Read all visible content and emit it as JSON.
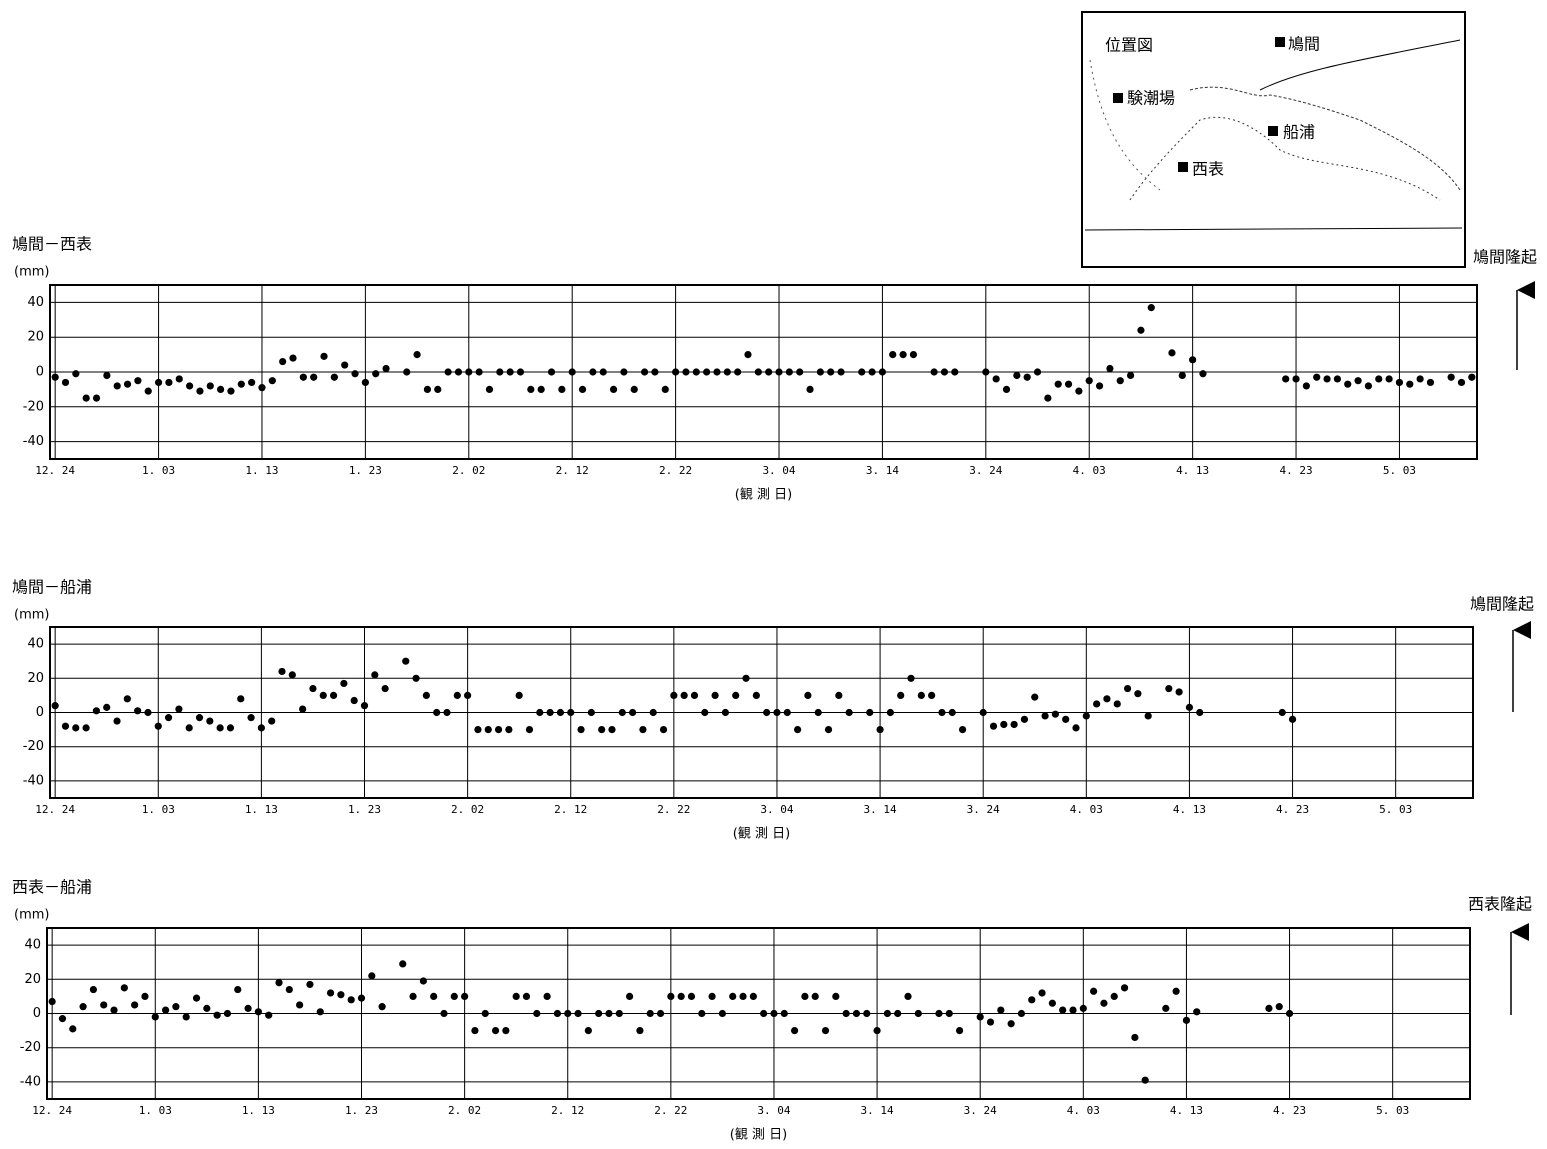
{
  "map": {
    "title": "位置図",
    "labels": [
      "鳩間",
      "験潮場",
      "船浦",
      "西表"
    ]
  },
  "chart_data": [
    {
      "type": "scatter",
      "title": "鳩間－西表",
      "y_label": "(mm)",
      "x_label": "(観 測 日)",
      "annotation": "鳩間隆起",
      "color": "#000000",
      "grid": true,
      "xlim": [
        -0.5,
        137.5
      ],
      "ylim": [
        -50,
        50
      ],
      "yticks": [
        -40,
        -20,
        0,
        20,
        40
      ],
      "xticks": [
        {
          "value": 0,
          "label": "12. 24"
        },
        {
          "value": 10,
          "label": "1. 03"
        },
        {
          "value": 20,
          "label": "1. 13"
        },
        {
          "value": 30,
          "label": "1. 23"
        },
        {
          "value": 40,
          "label": "2. 02"
        },
        {
          "value": 50,
          "label": "2. 12"
        },
        {
          "value": 60,
          "label": "2. 22"
        },
        {
          "value": 70,
          "label": "3. 04"
        },
        {
          "value": 80,
          "label": "3. 14"
        },
        {
          "value": 90,
          "label": "3. 24"
        },
        {
          "value": 100,
          "label": "4. 03"
        },
        {
          "value": 110,
          "label": "4. 13"
        },
        {
          "value": 120,
          "label": "4. 23"
        },
        {
          "value": 130,
          "label": "5. 03"
        }
      ],
      "x": [
        0,
        1,
        2,
        3,
        4,
        5,
        6,
        7,
        8,
        9,
        10,
        11,
        12,
        13,
        14,
        15,
        16,
        17,
        18,
        19,
        20,
        21,
        22,
        23,
        24,
        25,
        26,
        27,
        28,
        29,
        30,
        31,
        32,
        34,
        35,
        36,
        37,
        38,
        39,
        40,
        41,
        42,
        43,
        44,
        45,
        46,
        47,
        48,
        49,
        50,
        51,
        52,
        53,
        54,
        55,
        56,
        57,
        58,
        59,
        60,
        61,
        62,
        63,
        64,
        65,
        66,
        67,
        68,
        69,
        70,
        71,
        72,
        73,
        74,
        75,
        76,
        78,
        79,
        80,
        81,
        82,
        83,
        85,
        86,
        87,
        90,
        91,
        92,
        93,
        94,
        95,
        96,
        97,
        98,
        99,
        100,
        101,
        102,
        103,
        104,
        105,
        106,
        108,
        109,
        110,
        111,
        119,
        120,
        121,
        122,
        123,
        124,
        125,
        126,
        127,
        128,
        129,
        130,
        131,
        132,
        133,
        135,
        136,
        137
      ],
      "values": [
        -3,
        -6,
        -1,
        -15,
        -15,
        -2,
        -8,
        -7,
        -5,
        -11,
        -6,
        -6,
        -4,
        -8,
        -11,
        -8,
        -10,
        -11,
        -7,
        -6,
        -9,
        -5,
        6,
        8,
        -3,
        -3,
        9,
        -3,
        4,
        -1,
        -6,
        -1,
        2,
        0,
        10,
        -10,
        -10,
        0,
        0,
        0,
        0,
        -10,
        0,
        0,
        0,
        -10,
        -10,
        0,
        -10,
        0,
        -10,
        0,
        0,
        -10,
        0,
        -10,
        0,
        0,
        -10,
        0,
        0,
        0,
        0,
        0,
        0,
        0,
        10,
        0,
        0,
        0,
        0,
        0,
        -10,
        0,
        0,
        0,
        0,
        0,
        0,
        10,
        10,
        10,
        0,
        0,
        0,
        0,
        -4,
        -10,
        -2,
        -3,
        0,
        -15,
        -7,
        -7,
        -11,
        -5,
        -8,
        2,
        -5,
        -2,
        24,
        37,
        11,
        -2,
        7,
        -1,
        -4,
        -4,
        -8,
        -3,
        -4,
        -4,
        -7,
        -5,
        -8,
        -4,
        -4,
        -6,
        -7,
        -4,
        -6,
        -3,
        -6,
        -3
      ]
    },
    {
      "type": "scatter",
      "title": "鳩間－船浦",
      "y_label": "(mm)",
      "x_label": "(観 測 日)",
      "annotation": "鳩間隆起",
      "color": "#000000",
      "grid": true,
      "xlim": [
        -0.5,
        137.5
      ],
      "ylim": [
        -50,
        50
      ],
      "yticks": [
        -40,
        -20,
        0,
        20,
        40
      ],
      "xticks": [
        {
          "value": 0,
          "label": "12. 24"
        },
        {
          "value": 10,
          "label": "1. 03"
        },
        {
          "value": 20,
          "label": "1. 13"
        },
        {
          "value": 30,
          "label": "1. 23"
        },
        {
          "value": 40,
          "label": "2. 02"
        },
        {
          "value": 50,
          "label": "2. 12"
        },
        {
          "value": 60,
          "label": "2. 22"
        },
        {
          "value": 70,
          "label": "3. 04"
        },
        {
          "value": 80,
          "label": "3. 14"
        },
        {
          "value": 90,
          "label": "3. 24"
        },
        {
          "value": 100,
          "label": "4. 03"
        },
        {
          "value": 110,
          "label": "4. 13"
        },
        {
          "value": 120,
          "label": "4. 23"
        },
        {
          "value": 130,
          "label": "5. 03"
        }
      ],
      "x": [
        0,
        1,
        2,
        3,
        4,
        5,
        6,
        7,
        8,
        9,
        10,
        11,
        12,
        13,
        14,
        15,
        16,
        17,
        18,
        19,
        20,
        21,
        22,
        23,
        24,
        25,
        26,
        27,
        28,
        29,
        30,
        31,
        32,
        34,
        35,
        36,
        37,
        38,
        39,
        40,
        41,
        42,
        43,
        44,
        45,
        46,
        47,
        48,
        49,
        50,
        51,
        52,
        53,
        54,
        55,
        56,
        57,
        58,
        59,
        60,
        61,
        62,
        63,
        64,
        65,
        66,
        67,
        68,
        69,
        70,
        71,
        72,
        73,
        74,
        75,
        76,
        77,
        79,
        80,
        81,
        82,
        83,
        84,
        85,
        86,
        87,
        88,
        90,
        91,
        92,
        93,
        94,
        95,
        96,
        97,
        98,
        99,
        100,
        101,
        102,
        103,
        104,
        105,
        106,
        108,
        109,
        110,
        111,
        119,
        120
      ],
      "values": [
        4,
        -8,
        -9,
        -9,
        1,
        3,
        -5,
        8,
        1,
        0,
        -8,
        -3,
        2,
        -9,
        -3,
        -5,
        -9,
        -9,
        8,
        -3,
        -9,
        -5,
        24,
        22,
        2,
        14,
        10,
        10,
        17,
        7,
        4,
        22,
        14,
        30,
        20,
        10,
        0,
        0,
        10,
        10,
        -10,
        -10,
        -10,
        -10,
        10,
        -10,
        0,
        0,
        0,
        0,
        -10,
        0,
        -10,
        -10,
        0,
        0,
        -10,
        0,
        -10,
        10,
        10,
        10,
        0,
        10,
        0,
        10,
        20,
        10,
        0,
        0,
        0,
        -10,
        10,
        0,
        -10,
        10,
        0,
        0,
        -10,
        0,
        10,
        20,
        10,
        10,
        0,
        0,
        -10,
        0,
        -8,
        -7,
        -7,
        -4,
        9,
        -2,
        -1,
        -4,
        -9,
        -2,
        5,
        8,
        5,
        14,
        11,
        -2,
        14,
        12,
        3,
        0,
        0,
        -4
      ]
    },
    {
      "type": "scatter",
      "title": "西表－船浦",
      "y_label": "(mm)",
      "x_label": "(観 測 日)",
      "annotation": "西表隆起",
      "color": "#000000",
      "grid": true,
      "xlim": [
        -0.5,
        137.5
      ],
      "ylim": [
        -50,
        50
      ],
      "yticks": [
        -40,
        -20,
        0,
        20,
        40
      ],
      "xticks": [
        {
          "value": 0,
          "label": "12. 24"
        },
        {
          "value": 10,
          "label": "1. 03"
        },
        {
          "value": 20,
          "label": "1. 13"
        },
        {
          "value": 30,
          "label": "1. 23"
        },
        {
          "value": 40,
          "label": "2. 02"
        },
        {
          "value": 50,
          "label": "2. 12"
        },
        {
          "value": 60,
          "label": "2. 22"
        },
        {
          "value": 70,
          "label": "3. 04"
        },
        {
          "value": 80,
          "label": "3. 14"
        },
        {
          "value": 90,
          "label": "3. 24"
        },
        {
          "value": 100,
          "label": "4. 03"
        },
        {
          "value": 110,
          "label": "4. 13"
        },
        {
          "value": 120,
          "label": "4. 23"
        },
        {
          "value": 130,
          "label": "5. 03"
        }
      ],
      "x": [
        0,
        1,
        2,
        3,
        4,
        5,
        6,
        7,
        8,
        9,
        10,
        11,
        12,
        13,
        14,
        15,
        16,
        17,
        18,
        19,
        20,
        21,
        22,
        23,
        24,
        25,
        26,
        27,
        28,
        29,
        30,
        31,
        32,
        34,
        35,
        36,
        37,
        38,
        39,
        40,
        41,
        42,
        43,
        44,
        45,
        46,
        47,
        48,
        49,
        50,
        51,
        52,
        53,
        54,
        55,
        56,
        57,
        58,
        59,
        60,
        61,
        62,
        63,
        64,
        65,
        66,
        67,
        68,
        69,
        70,
        71,
        72,
        73,
        74,
        75,
        76,
        77,
        78,
        79,
        80,
        81,
        82,
        83,
        84,
        86,
        87,
        88,
        90,
        91,
        92,
        93,
        94,
        95,
        96,
        97,
        98,
        99,
        100,
        101,
        102,
        103,
        104,
        105,
        106,
        108,
        109,
        110,
        111,
        118,
        119,
        120
      ],
      "values": [
        7,
        -3,
        -9,
        4,
        14,
        5,
        2,
        15,
        5,
        10,
        -2,
        2,
        4,
        -2,
        9,
        3,
        -1,
        0,
        14,
        3,
        1,
        -1,
        18,
        14,
        5,
        17,
        1,
        12,
        11,
        8,
        9,
        22,
        4,
        29,
        10,
        19,
        10,
        0,
        10,
        10,
        -10,
        0,
        -10,
        -10,
        10,
        10,
        0,
        10,
        0,
        0,
        0,
        -10,
        0,
        0,
        0,
        10,
        -10,
        0,
        0,
        10,
        10,
        10,
        0,
        10,
        0,
        10,
        10,
        10,
        0,
        0,
        0,
        -10,
        10,
        10,
        -10,
        10,
        0,
        0,
        0,
        -10,
        0,
        0,
        10,
        0,
        0,
        0,
        -10,
        -2,
        -5,
        2,
        -6,
        0,
        8,
        12,
        6,
        2,
        2,
        3,
        13,
        6,
        10,
        15,
        -14,
        -39,
        3,
        13,
        -4,
        1,
        3,
        4,
        0
      ]
    }
  ]
}
